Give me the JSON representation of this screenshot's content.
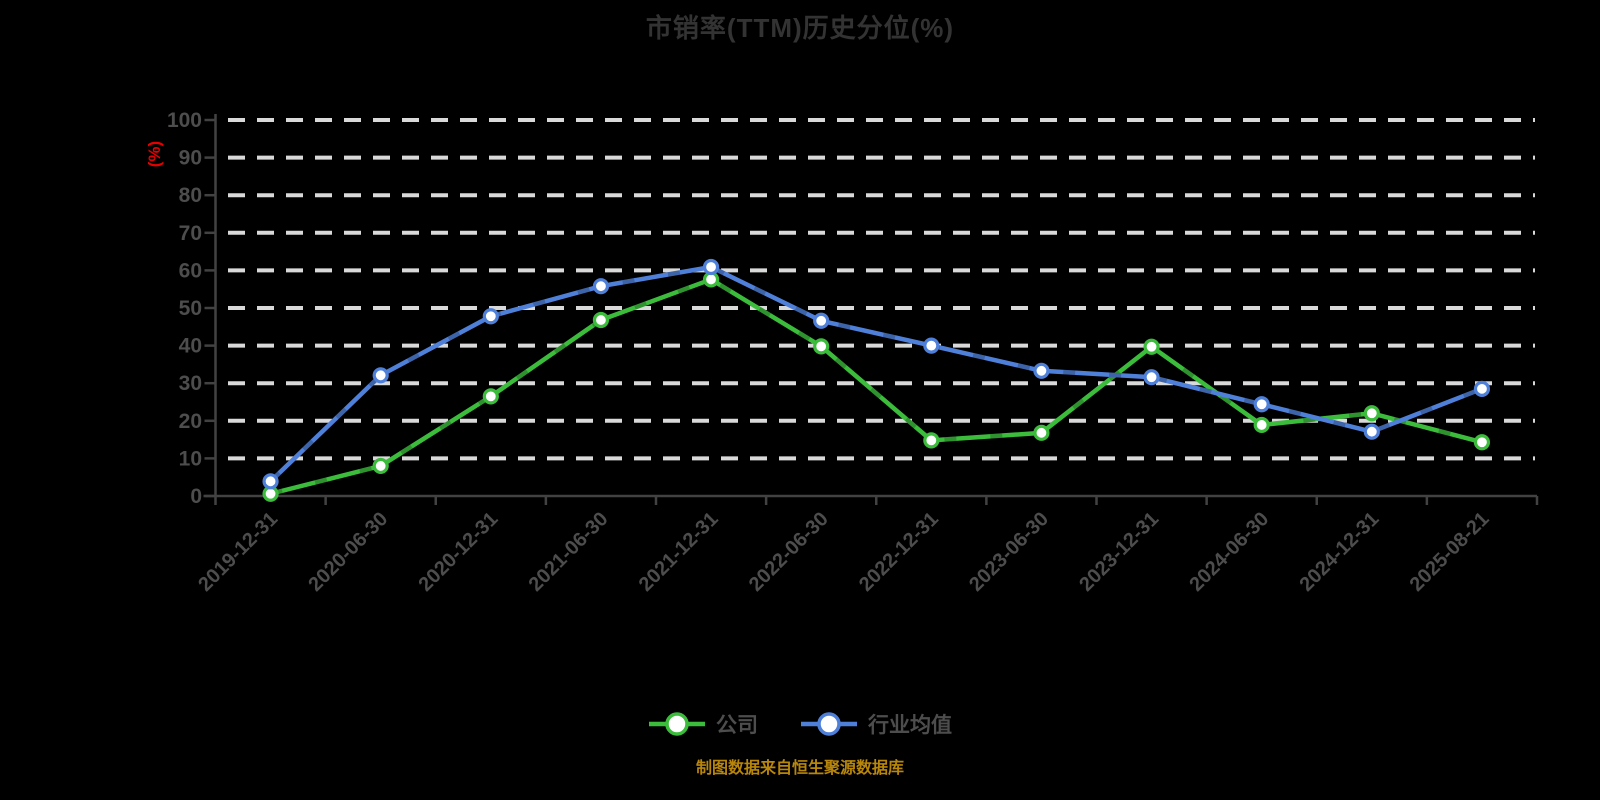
{
  "chart_data": {
    "type": "line",
    "title": "市销率(TTM)历史分位(%)",
    "xlabel": "",
    "ylabel": "(%)",
    "categories": [
      "2019-12-31",
      "2020-06-30",
      "2020-12-31",
      "2021-06-30",
      "2021-12-31",
      "2022-06-30",
      "2022-12-31",
      "2023-06-30",
      "2023-12-31",
      "2024-06-30",
      "2024-12-31",
      "2025-08-21"
    ],
    "series": [
      {
        "key": "company",
        "name": "公司",
        "color": "#3bbd3b",
        "values": [
          0.6,
          8.0,
          26.5,
          46.8,
          57.6,
          39.8,
          14.8,
          16.8,
          39.7,
          18.9,
          22.0,
          14.3
        ]
      },
      {
        "key": "industry",
        "name": "行业均值",
        "color": "#4f80d9",
        "values": [
          3.9,
          32.1,
          47.8,
          55.8,
          60.9,
          46.6,
          40.0,
          33.3,
          31.6,
          24.4,
          17.1,
          28.5
        ]
      }
    ],
    "ylim": [
      0,
      100
    ],
    "y_ticks": [
      0,
      10,
      20,
      30,
      40,
      50,
      60,
      70,
      80,
      90,
      100
    ],
    "grid": "horizontal-dashed",
    "legend_position": "bottom",
    "marker": "circle-white-fill"
  },
  "footer": {
    "source_note": "制图数据来自恒生聚源数据库"
  },
  "colors": {
    "background": "#000000",
    "title": "#333333",
    "axis_label": "#4d4d4d",
    "axis_line": "#424242",
    "grid_line": "#d9d9d9",
    "unit_label": "#e60000",
    "footer_text": "#b8860b"
  }
}
